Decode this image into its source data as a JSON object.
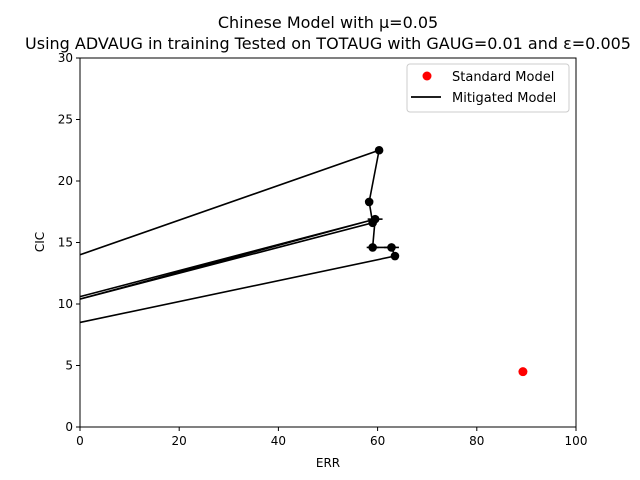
{
  "chart_data": {
    "type": "line",
    "title_line1": "Chinese Model with μ=0.05",
    "title_line2": "Using ADVAUG in training Tested on TOTAUG with GAUG=0.01 and ε=0.005",
    "xlabel": "ERR",
    "ylabel": "CIC",
    "xlim": [
      0,
      100
    ],
    "ylim": [
      0,
      30
    ],
    "xticks": [
      0,
      20,
      40,
      60,
      80,
      100
    ],
    "yticks": [
      0,
      5,
      10,
      15,
      20,
      25,
      30
    ],
    "grid": false,
    "legend_placement": "top-right",
    "series": [
      {
        "name": "Standard Model",
        "kind": "scatter",
        "color": "#ff0000",
        "points": [
          {
            "x": 89.3,
            "y": 4.5
          }
        ]
      },
      {
        "name": "Mitigated Model",
        "kind": "line",
        "color": "#000000",
        "points": [
          {
            "x": 0,
            "y": 14.0
          },
          {
            "x": 60.3,
            "y": 22.5
          },
          {
            "x": 58.3,
            "y": 18.3
          },
          {
            "x": 59.0,
            "y": 16.6
          },
          {
            "x": 0,
            "y": 10.4
          },
          {
            "x": 59.5,
            "y": 16.9
          },
          {
            "x": 0,
            "y": 10.6
          },
          {
            "x": 59.5,
            "y": 16.9
          },
          {
            "x": 59.0,
            "y": 14.6
          },
          {
            "x": 62.8,
            "y": 14.6
          },
          {
            "x": 63.5,
            "y": 13.9
          },
          {
            "x": 0,
            "y": 8.5
          }
        ],
        "markers": [
          {
            "x": 60.3,
            "y": 22.5
          },
          {
            "x": 58.3,
            "y": 18.3
          },
          {
            "x": 59.5,
            "y": 16.9
          },
          {
            "x": 59.0,
            "y": 16.6
          },
          {
            "x": 59.0,
            "y": 14.6
          },
          {
            "x": 62.8,
            "y": 14.6
          },
          {
            "x": 63.5,
            "y": 13.9
          }
        ],
        "error_bars": [
          {
            "x": 59.5,
            "y": 16.9,
            "xerr": 1.5
          },
          {
            "x": 59.0,
            "y": 14.6,
            "xerr": 1.2
          },
          {
            "x": 62.8,
            "y": 14.6,
            "xerr": 1.5
          }
        ]
      }
    ]
  }
}
